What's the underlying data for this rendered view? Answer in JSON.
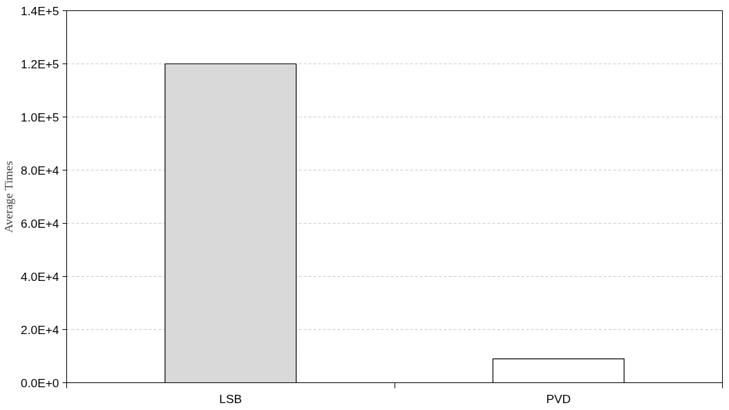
{
  "chart_data": {
    "type": "bar",
    "ylabel": "Average Times",
    "categories": [
      "LSB",
      "PVD"
    ],
    "values": [
      120000,
      9000
    ],
    "colors": [
      "#d9d9d9",
      "#ffffff"
    ],
    "ylim": [
      0,
      140000
    ],
    "yticks": [
      {
        "value": 0,
        "label": "0.0E+0"
      },
      {
        "value": 20000,
        "label": "2.0E+4"
      },
      {
        "value": 40000,
        "label": "4.0E+4"
      },
      {
        "value": 60000,
        "label": "6.0E+4"
      },
      {
        "value": 80000,
        "label": "8.0E+4"
      },
      {
        "value": 100000,
        "label": "1.0E+5"
      },
      {
        "value": 120000,
        "label": "1.2E+5"
      },
      {
        "value": 140000,
        "label": "1.4E+5"
      }
    ],
    "grid": "y"
  }
}
